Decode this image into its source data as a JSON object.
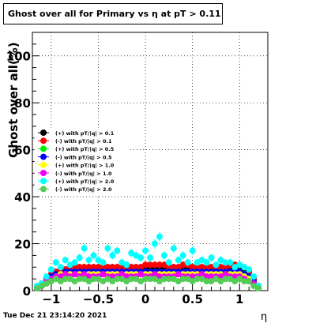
{
  "title": "Ghost over all for Primary vs   η at pT > 0.11",
  "timestamp": "Tue Dec 21 23:14:20 2021",
  "chart_data": {
    "type": "scatter",
    "xlabel": "η",
    "ylabel": "Ghost  over all(%)",
    "xlim": [
      -1.2,
      1.3
    ],
    "ylim": [
      0,
      110
    ],
    "xticks": [
      -1,
      -0.5,
      0,
      0.5,
      1
    ],
    "xtick_labels": [
      "−1",
      "−0.5",
      "0",
      "0.5",
      "1"
    ],
    "yticks": [
      0,
      20,
      40,
      60,
      80,
      100
    ],
    "ytick_labels": [
      "0",
      "20",
      "40",
      "60",
      "80",
      "100"
    ],
    "grid": true,
    "legend_position": "middle-left",
    "x": [
      -1.15,
      -1.1,
      -1.05,
      -1.0,
      -0.95,
      -0.9,
      -0.85,
      -0.8,
      -0.75,
      -0.7,
      -0.65,
      -0.6,
      -0.55,
      -0.5,
      -0.45,
      -0.4,
      -0.35,
      -0.3,
      -0.25,
      -0.2,
      -0.15,
      -0.1,
      -0.05,
      0.0,
      0.05,
      0.1,
      0.15,
      0.2,
      0.25,
      0.3,
      0.35,
      0.4,
      0.45,
      0.5,
      0.55,
      0.6,
      0.65,
      0.7,
      0.75,
      0.8,
      0.85,
      0.9,
      0.95,
      1.0,
      1.05,
      1.1,
      1.15,
      1.2
    ],
    "series": [
      {
        "name": "(+) with pT/|q| > 0.1",
        "color": "#000000",
        "values": [
          1,
          3,
          5,
          7,
          8,
          9,
          9,
          10,
          10,
          10,
          10,
          10,
          10,
          10,
          10,
          10,
          10,
          10,
          10,
          10,
          10,
          10,
          10,
          10,
          10,
          10,
          10,
          10,
          10,
          10,
          10,
          10,
          10,
          10,
          10,
          10,
          10,
          10,
          10,
          10,
          10,
          10,
          10,
          10,
          9,
          8,
          5,
          2
        ]
      },
      {
        "name": "(-) with pT/|q| > 0.1",
        "color": "#ff0000",
        "values": [
          1,
          3,
          5,
          7,
          8,
          9,
          9,
          10,
          10,
          10,
          10,
          10,
          10,
          10,
          10,
          10,
          10,
          10,
          10,
          10,
          10,
          10,
          10,
          11,
          11,
          11,
          11,
          11,
          10,
          10,
          10,
          11,
          11,
          10,
          10,
          10,
          10,
          10,
          10,
          10,
          10,
          11,
          11,
          11,
          10,
          8,
          5,
          2
        ]
      },
      {
        "name": "(+) with pT/|q| > 0.5",
        "color": "#00ee00",
        "values": [
          1,
          2,
          4,
          6,
          7,
          7,
          8,
          8,
          8,
          8,
          8,
          8,
          8,
          8,
          8,
          8,
          8,
          8,
          8,
          8,
          8,
          8,
          8,
          8,
          8,
          8,
          8,
          8,
          8,
          8,
          8,
          8,
          8,
          8,
          8,
          8,
          8,
          8,
          8,
          8,
          8,
          8,
          8,
          8,
          7,
          6,
          4,
          1
        ]
      },
      {
        "name": "(-) with pT/|q| > 0.5",
        "color": "#0000ff",
        "values": [
          1,
          2,
          4,
          6,
          7,
          7,
          8,
          8,
          8,
          8,
          8,
          8,
          8,
          8,
          8,
          8,
          8,
          8,
          8,
          8,
          8,
          8,
          8,
          8,
          8,
          8,
          8,
          8,
          8,
          8,
          8,
          8,
          8,
          8,
          8,
          8,
          8,
          8,
          8,
          8,
          8,
          8,
          8,
          8,
          7,
          6,
          4,
          1
        ]
      },
      {
        "name": "(+) with pT/|q| > 1.0",
        "color": "#ffff00",
        "values": [
          1,
          2,
          4,
          5,
          6,
          7,
          7,
          7,
          7,
          7,
          7,
          7,
          7,
          7,
          7,
          7,
          7,
          7,
          7,
          7,
          7,
          7,
          7,
          7,
          7,
          7,
          7,
          7,
          7,
          7,
          7,
          7,
          7,
          7,
          7,
          7,
          7,
          7,
          7,
          7,
          7,
          7,
          7,
          7,
          6,
          5,
          3,
          1
        ]
      },
      {
        "name": "(-) with pT/|q| > 1.0",
        "color": "#ee00ee",
        "values": [
          1,
          2,
          4,
          5,
          6,
          6,
          7,
          6,
          7,
          6,
          7,
          6,
          6,
          6,
          7,
          6,
          6,
          6,
          7,
          6,
          6,
          6,
          7,
          6,
          6,
          7,
          6,
          6,
          6,
          6,
          7,
          6,
          6,
          6,
          6,
          7,
          6,
          6,
          6,
          6,
          7,
          6,
          6,
          6,
          5,
          4,
          3,
          1
        ]
      },
      {
        "name": "(+) with pT/|q| > 2.0",
        "color": "#00ffff",
        "values": [
          2,
          3,
          6,
          9,
          12,
          10,
          13,
          11,
          12,
          14,
          18,
          13,
          15,
          13,
          12,
          18,
          15,
          17,
          12,
          11,
          16,
          15,
          14,
          17,
          14,
          20,
          23,
          15,
          12,
          18,
          13,
          15,
          12,
          17,
          12,
          13,
          12,
          14,
          11,
          13,
          12,
          12,
          10,
          11,
          10,
          9,
          6,
          2
        ]
      },
      {
        "name": "(-) with pT/|q| > 2.0",
        "color": "#55cc55",
        "values": [
          1,
          2,
          3,
          4,
          5,
          4,
          5,
          5,
          4,
          5,
          5,
          4,
          5,
          5,
          4,
          5,
          4,
          5,
          5,
          4,
          5,
          5,
          4,
          5,
          5,
          5,
          4,
          5,
          5,
          5,
          4,
          5,
          5,
          4,
          5,
          5,
          4,
          4,
          5,
          4,
          5,
          5,
          4,
          5,
          4,
          4,
          2,
          1
        ]
      }
    ]
  }
}
